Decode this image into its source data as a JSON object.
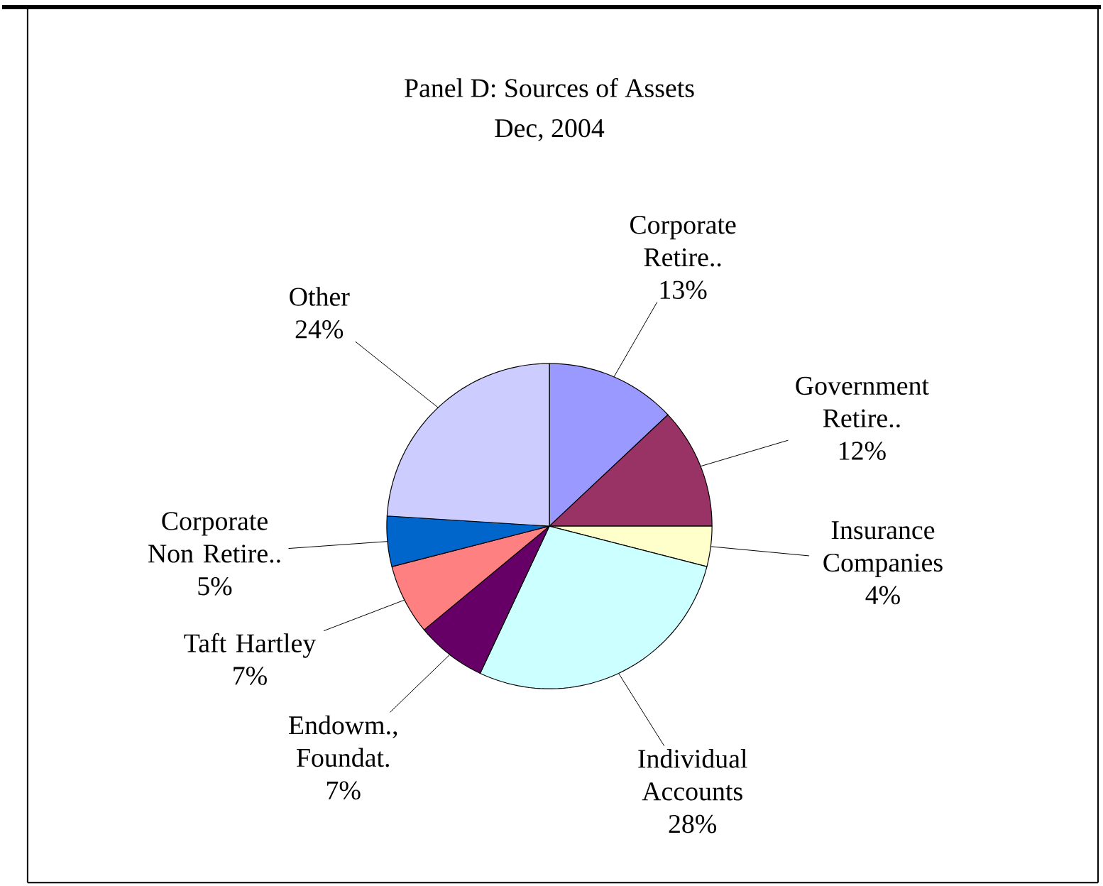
{
  "chart_data": {
    "type": "pie",
    "title": "Panel D: Sources of Assets",
    "subtitle": "Dec, 2004",
    "categories": [
      "Corporate Retire..",
      "Government Retire..",
      "Insurance Companies",
      "Individual Accounts",
      "Endowm., Foundat.",
      "Taft Hartley",
      "Corporate Non Retire..",
      "Other"
    ],
    "values": [
      13,
      12,
      4,
      28,
      7,
      7,
      5,
      24
    ],
    "value_labels": [
      "13%",
      "12%",
      "4%",
      "28%",
      "7%",
      "7%",
      "5%",
      "24%"
    ],
    "colors": [
      "#9999ff",
      "#993366",
      "#ffffcc",
      "#ccffff",
      "#660066",
      "#ff8080",
      "#0066cc",
      "#ccccff"
    ]
  }
}
